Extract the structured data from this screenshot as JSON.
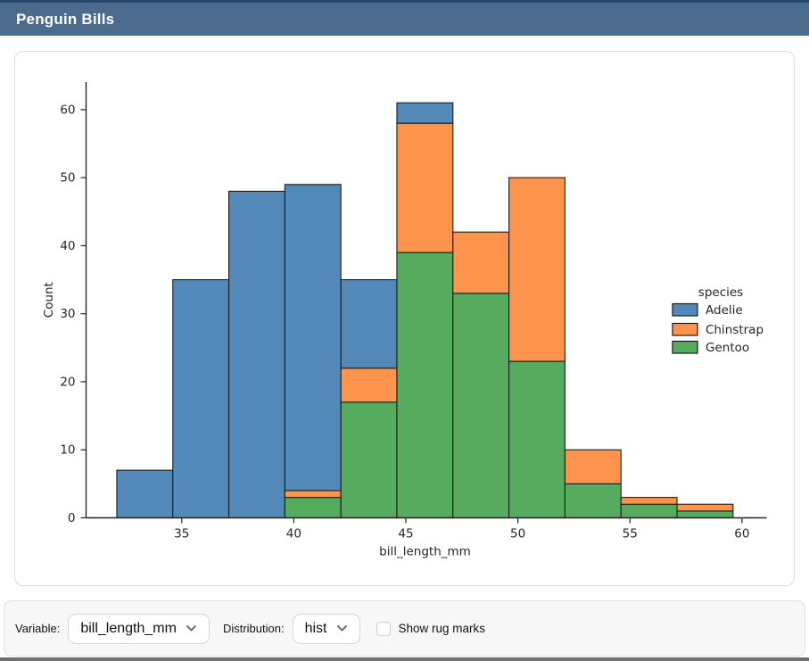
{
  "header": {
    "title": "Penguin Bills"
  },
  "chart_data": {
    "type": "bar",
    "subtype": "stacked_histogram",
    "title": "",
    "xlabel": "bill_length_mm",
    "ylabel": "Count",
    "bin_start": 32.1,
    "bin_width": 2.5,
    "bin_count": 11,
    "xlim": [
      30.73,
      60.98
    ],
    "ylim": [
      0,
      64.05
    ],
    "xticks": [
      35,
      40,
      45,
      50,
      55,
      60
    ],
    "yticks": [
      0,
      10,
      20,
      30,
      40,
      50,
      60
    ],
    "grid": false,
    "legend": {
      "title": "species",
      "position": "center-right",
      "entries": [
        "Adelie",
        "Chinstrap",
        "Gentoo"
      ]
    },
    "stack_order_bottom_to_top": [
      "Gentoo",
      "Chinstrap",
      "Adelie"
    ],
    "series": [
      {
        "name": "Adelie",
        "color": "#5289b9",
        "values": [
          7,
          35,
          48,
          45,
          13,
          3,
          0,
          0,
          0,
          0,
          0
        ]
      },
      {
        "name": "Chinstrap",
        "color": "#fc944e",
        "values": [
          0,
          0,
          0,
          1,
          5,
          19,
          9,
          27,
          5,
          1,
          1
        ]
      },
      {
        "name": "Gentoo",
        "color": "#56ab5f",
        "values": [
          0,
          0,
          0,
          3,
          17,
          39,
          33,
          23,
          5,
          2,
          1
        ]
      }
    ],
    "bin_totals": [
      7,
      35,
      48,
      49,
      35,
      61,
      42,
      50,
      10,
      3,
      2
    ],
    "bar_edge_color": "#1c1c1c",
    "axis_color": "#262626"
  },
  "controls": {
    "variable_label": "Variable:",
    "variable_value": "bill_length_mm",
    "distribution_label": "Distribution:",
    "distribution_value": "hist",
    "rug_label": "Show rug marks",
    "rug_checked": false
  },
  "colors": {
    "title_bar": "#4a6b8e",
    "title_bar_top": "#26466b",
    "footer_bg": "#f7f7f7"
  }
}
